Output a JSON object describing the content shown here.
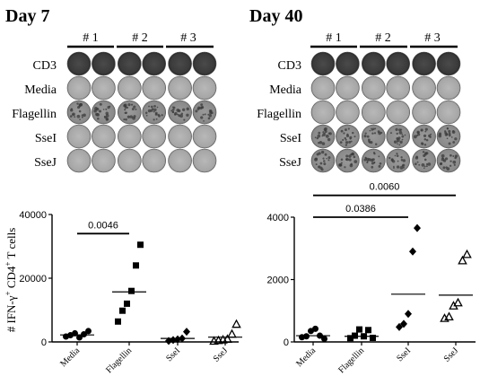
{
  "panels": [
    {
      "title": "Day 7",
      "groups": [
        "# 1",
        "# 2",
        "# 3"
      ],
      "rows": [
        {
          "label": "CD3",
          "tone": "dark"
        },
        {
          "label": "Media",
          "tone": "light"
        },
        {
          "label": "Flagellin",
          "tone": "spotted"
        },
        {
          "label": "SseI",
          "tone": "light"
        },
        {
          "label": "SseJ",
          "tone": "light"
        }
      ]
    },
    {
      "title": "Day 40",
      "groups": [
        "# 1",
        "# 2",
        "# 3"
      ],
      "rows": [
        {
          "label": "CD3",
          "tone": "dark"
        },
        {
          "label": "Media",
          "tone": "light"
        },
        {
          "label": "Flagellin",
          "tone": "light"
        },
        {
          "label": "SseI",
          "tone": "spotted"
        },
        {
          "label": "SseJ",
          "tone": "spotted"
        }
      ]
    }
  ],
  "chart_data": [
    {
      "type": "scatter",
      "title": "",
      "ylabel": "# IFN-γ+ CD4+ T cells",
      "ylabel_main": "# IFN-γ",
      "ylabel_sup1": "+",
      "ylabel_mid": " CD4",
      "ylabel_sup2": "+",
      "ylabel_tail": " T cells",
      "ylim": [
        0,
        40000
      ],
      "yticks": [
        "0",
        "20000",
        "40000"
      ],
      "categories": [
        "Media",
        "Flagellin",
        "SseI",
        "SseJ"
      ],
      "markers": [
        "circle",
        "square",
        "diamond",
        "triangle"
      ],
      "points": [
        [
          1700,
          2100,
          2700,
          1400,
          2400,
          3400
        ],
        [
          6400,
          9800,
          12000,
          16000,
          24000,
          30500
        ],
        [
          300,
          600,
          800,
          1100,
          3200
        ],
        [
          200,
          400,
          600,
          800,
          2400,
          5500
        ]
      ],
      "means": [
        2200,
        15700,
        1100,
        1500
      ],
      "annotations": [
        {
          "text": "0.0046",
          "from": 0,
          "to": 1,
          "y": 34000
        }
      ]
    },
    {
      "type": "scatter",
      "title": "",
      "ylim": [
        0,
        4000
      ],
      "yticks": [
        "0",
        "2000",
        "4000"
      ],
      "categories": [
        "Media",
        "Flagellin",
        "SseI",
        "SseJ"
      ],
      "markers": [
        "circle",
        "square",
        "diamond",
        "triangle"
      ],
      "points": [
        [
          150,
          180,
          350,
          420,
          200,
          100
        ],
        [
          120,
          200,
          400,
          180,
          380,
          130
        ],
        [
          480,
          580,
          900,
          2900,
          3650
        ],
        [
          750,
          800,
          1150,
          1250,
          2600,
          2800
        ]
      ],
      "means": [
        200,
        180,
        1530,
        1500
      ],
      "annotations": [
        {
          "text": "0.0386",
          "from": 0,
          "to": 2,
          "y": 4000
        },
        {
          "text": "0.0060",
          "from": 0,
          "to": 3,
          "y": 4700
        }
      ]
    }
  ]
}
